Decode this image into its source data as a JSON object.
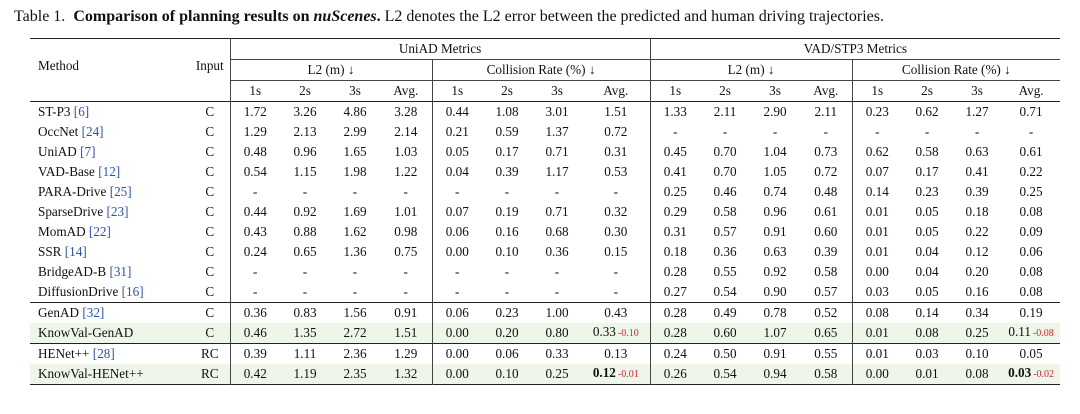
{
  "caption": {
    "label": "Table 1.",
    "bold_lead": "Comparison of planning results on ",
    "italic": "nuScenes",
    "bold_tail": ".",
    "rest": " L2 denotes the L2 error between the predicted and human driving trajectories."
  },
  "header": {
    "method": "Method",
    "input": "Input",
    "uniad_metrics": "UniAD Metrics",
    "vad_metrics": "VAD/STP3 Metrics",
    "l2": "L2 (m) ↓",
    "collision": "Collision Rate (%) ↓",
    "sub": [
      "1s",
      "2s",
      "3s",
      "Avg."
    ]
  },
  "groups": [
    {
      "rows": [
        {
          "method": "ST-P3",
          "ref": "[6]",
          "input": "C",
          "green": false,
          "u_l2": [
            "1.72",
            "3.26",
            "4.86",
            "3.28"
          ],
          "u_col": [
            "0.44",
            "1.08",
            "3.01",
            "1.51"
          ],
          "v_l2": [
            "1.33",
            "2.11",
            "2.90",
            "2.11"
          ],
          "v_col": [
            "0.23",
            "0.62",
            "1.27",
            "0.71"
          ]
        },
        {
          "method": "OccNet",
          "ref": "[24]",
          "input": "C",
          "green": false,
          "u_l2": [
            "1.29",
            "2.13",
            "2.99",
            "2.14"
          ],
          "u_col": [
            "0.21",
            "0.59",
            "1.37",
            "0.72"
          ],
          "v_l2": [
            "-",
            "-",
            "-",
            "-"
          ],
          "v_col": [
            "-",
            "-",
            "-",
            "-"
          ]
        },
        {
          "method": "UniAD",
          "ref": "[7]",
          "input": "C",
          "green": false,
          "u_l2": [
            "0.48",
            "0.96",
            "1.65",
            "1.03"
          ],
          "u_col": [
            "0.05",
            "0.17",
            "0.71",
            "0.31"
          ],
          "v_l2": [
            "0.45",
            "0.70",
            "1.04",
            "0.73"
          ],
          "v_col": [
            "0.62",
            "0.58",
            "0.63",
            "0.61"
          ]
        },
        {
          "method": "VAD-Base",
          "ref": "[12]",
          "input": "C",
          "green": false,
          "u_l2": [
            "0.54",
            "1.15",
            "1.98",
            "1.22"
          ],
          "u_col": [
            "0.04",
            "0.39",
            "1.17",
            "0.53"
          ],
          "v_l2": [
            "0.41",
            "0.70",
            "1.05",
            "0.72"
          ],
          "v_col": [
            "0.07",
            "0.17",
            "0.41",
            "0.22"
          ]
        },
        {
          "method": "PARA-Drive",
          "ref": "[25]",
          "input": "C",
          "green": false,
          "u_l2": [
            "-",
            "-",
            "-",
            "-"
          ],
          "u_col": [
            "-",
            "-",
            "-",
            "-"
          ],
          "v_l2": [
            "0.25",
            "0.46",
            "0.74",
            "0.48"
          ],
          "v_col": [
            "0.14",
            "0.23",
            "0.39",
            "0.25"
          ]
        },
        {
          "method": "SparseDrive",
          "ref": "[23]",
          "input": "C",
          "green": false,
          "u_l2": [
            "0.44",
            "0.92",
            "1.69",
            "1.01"
          ],
          "u_col": [
            "0.07",
            "0.19",
            "0.71",
            "0.32"
          ],
          "v_l2": [
            "0.29",
            "0.58",
            "0.96",
            "0.61"
          ],
          "v_col": [
            "0.01",
            "0.05",
            "0.18",
            "0.08"
          ]
        },
        {
          "method": "MomAD",
          "ref": "[22]",
          "input": "C",
          "green": false,
          "u_l2": [
            "0.43",
            "0.88",
            "1.62",
            "0.98"
          ],
          "u_col": [
            "0.06",
            "0.16",
            "0.68",
            "0.30"
          ],
          "v_l2": [
            "0.31",
            "0.57",
            "0.91",
            "0.60"
          ],
          "v_col": [
            "0.01",
            "0.05",
            "0.22",
            "0.09"
          ]
        },
        {
          "method": "SSR",
          "ref": "[14]",
          "input": "C",
          "green": false,
          "u_l2": [
            "0.24",
            "0.65",
            "1.36",
            "0.75"
          ],
          "u_col": [
            "0.00",
            "0.10",
            "0.36",
            "0.15"
          ],
          "v_l2": [
            "0.18",
            "0.36",
            "0.63",
            "0.39"
          ],
          "v_col": [
            "0.01",
            "0.04",
            "0.12",
            "0.06"
          ]
        },
        {
          "method": "BridgeAD-B",
          "ref": "[31]",
          "input": "C",
          "green": false,
          "u_l2": [
            "-",
            "-",
            "-",
            "-"
          ],
          "u_col": [
            "-",
            "-",
            "-",
            "-"
          ],
          "v_l2": [
            "0.28",
            "0.55",
            "0.92",
            "0.58"
          ],
          "v_col": [
            "0.00",
            "0.04",
            "0.20",
            "0.08"
          ]
        },
        {
          "method": "DiffusionDrive",
          "ref": "[16]",
          "input": "C",
          "green": false,
          "u_l2": [
            "-",
            "-",
            "-",
            "-"
          ],
          "u_col": [
            "-",
            "-",
            "-",
            "-"
          ],
          "v_l2": [
            "0.27",
            "0.54",
            "0.90",
            "0.57"
          ],
          "v_col": [
            "0.03",
            "0.05",
            "0.16",
            "0.08"
          ]
        }
      ]
    },
    {
      "rows": [
        {
          "method": "GenAD",
          "ref": "[32]",
          "input": "C",
          "green": false,
          "u_l2": [
            "0.36",
            "0.83",
            "1.56",
            "0.91"
          ],
          "u_col": [
            "0.06",
            "0.23",
            "1.00",
            "0.43"
          ],
          "v_l2": [
            "0.28",
            "0.49",
            "0.78",
            "0.52"
          ],
          "v_col": [
            "0.08",
            "0.14",
            "0.34",
            "0.19"
          ]
        },
        {
          "method": "KnowVal-GenAD",
          "ref": "",
          "input": "C",
          "green": true,
          "u_l2": [
            "0.46",
            "1.35",
            "2.72",
            "1.51"
          ],
          "u_col": [
            "0.00",
            "0.20",
            "0.80",
            "0.33"
          ],
          "u_delta": "-0.10",
          "v_l2": [
            "0.28",
            "0.60",
            "1.07",
            "0.65"
          ],
          "v_col": [
            "0.01",
            "0.08",
            "0.25",
            "0.11"
          ],
          "v_delta": "-0.08"
        }
      ]
    },
    {
      "rows": [
        {
          "method": "HENet++",
          "ref": "[28]",
          "input": "RC",
          "green": false,
          "u_l2": [
            "0.39",
            "1.11",
            "2.36",
            "1.29"
          ],
          "u_col": [
            "0.00",
            "0.06",
            "0.33",
            "0.13"
          ],
          "v_l2": [
            "0.24",
            "0.50",
            "0.91",
            "0.55"
          ],
          "v_col": [
            "0.01",
            "0.03",
            "0.10",
            "0.05"
          ]
        },
        {
          "method": "KnowVal-HENet++",
          "ref": "",
          "input": "RC",
          "green": true,
          "u_l2": [
            "0.42",
            "1.19",
            "2.35",
            "1.32"
          ],
          "u_col": [
            "0.00",
            "0.10",
            "0.25",
            "0.12"
          ],
          "u_delta": "-0.01",
          "u_bold_avg": true,
          "v_l2": [
            "0.26",
            "0.54",
            "0.94",
            "0.58"
          ],
          "v_col": [
            "0.00",
            "0.01",
            "0.08",
            "0.03"
          ],
          "v_delta": "-0.02",
          "v_bold_avg": true
        }
      ]
    }
  ],
  "colors": {
    "ref_link": "#2a52be",
    "delta": "#d8282f",
    "green_row": "#edf6e9"
  }
}
